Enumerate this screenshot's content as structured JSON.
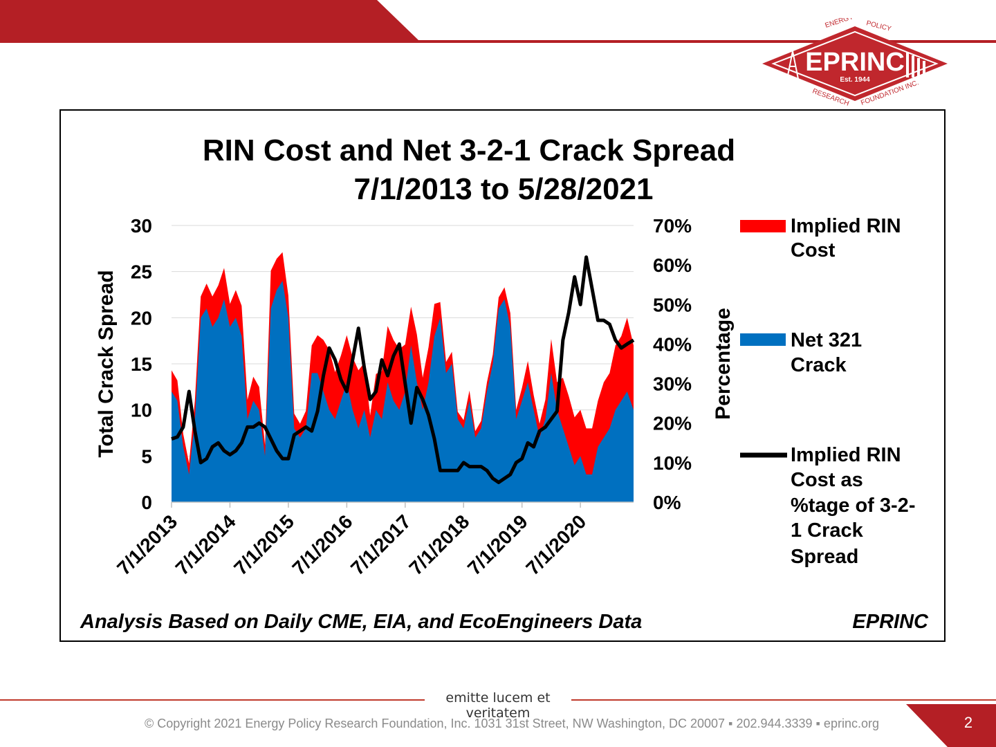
{
  "header": {
    "brand_color": "#b41f25",
    "logo": {
      "name": "EPRINC",
      "est": "Est. 1944",
      "ring_top_left": "ENERGY",
      "ring_top_right": "POLICY",
      "ring_bottom_left": "RESEARCH",
      "ring_bottom_right": "FOUNDATION INC."
    }
  },
  "chart_data": {
    "type": "area",
    "title_line1": "RIN Cost and Net 3-2-1 Crack Spread",
    "title_line2": "7/1/2013  to 5/28/2021",
    "ylabel": "Total Crack Spread",
    "y2label": "Percentage",
    "ylim": [
      0,
      30
    ],
    "y_ticks": [
      "0",
      "5",
      "10",
      "15",
      "20",
      "25",
      "30"
    ],
    "y2lim": [
      0,
      70
    ],
    "y2_ticks": [
      "0%",
      "10%",
      "20%",
      "30%",
      "40%",
      "50%",
      "60%",
      "70%"
    ],
    "x_ticks": [
      "7/1/2013",
      "7/1/2014",
      "7/1/2015",
      "7/1/2016",
      "7/1/2017",
      "7/1/2018",
      "7/1/2019",
      "7/1/2020"
    ],
    "xlim": [
      2013.5,
      2021.41
    ],
    "grid": "horizontal",
    "legend_position": "right",
    "colors": {
      "rin": "#ff0000",
      "crack": "#0070c0",
      "pct": "#000000"
    },
    "legend": {
      "rin": [
        "Implied RIN",
        "Cost"
      ],
      "crack": [
        "Net 321",
        "Crack"
      ],
      "pct": [
        "Implied RIN",
        "Cost as",
        "%tage of 3-2-",
        "1 Crack",
        "Spread"
      ]
    },
    "x": [
      2013.5,
      2013.6,
      2013.7,
      2013.8,
      2013.9,
      2014.0,
      2014.1,
      2014.2,
      2014.3,
      2014.4,
      2014.5,
      2014.6,
      2014.7,
      2014.8,
      2014.9,
      2015.0,
      2015.1,
      2015.2,
      2015.3,
      2015.4,
      2015.5,
      2015.6,
      2015.7,
      2015.8,
      2015.9,
      2016.0,
      2016.1,
      2016.2,
      2016.3,
      2016.4,
      2016.5,
      2016.6,
      2016.7,
      2016.8,
      2016.9,
      2017.0,
      2017.1,
      2017.2,
      2017.3,
      2017.4,
      2017.5,
      2017.6,
      2017.7,
      2017.8,
      2017.9,
      2018.0,
      2018.1,
      2018.2,
      2018.3,
      2018.4,
      2018.5,
      2018.6,
      2018.7,
      2018.8,
      2018.9,
      2019.0,
      2019.1,
      2019.2,
      2019.3,
      2019.4,
      2019.5,
      2019.6,
      2019.7,
      2019.8,
      2019.9,
      2020.0,
      2020.1,
      2020.2,
      2020.3,
      2020.4,
      2020.5,
      2020.6,
      2020.7,
      2020.8,
      2020.9,
      2021.0,
      2021.1,
      2021.2,
      2021.3,
      2021.41
    ],
    "series": [
      {
        "name": "Net 321 Crack",
        "values": [
          12,
          11,
          6,
          3,
          9,
          20,
          21,
          19,
          20,
          22,
          19,
          20,
          18,
          9,
          11,
          10,
          5,
          21,
          23,
          24,
          20,
          8,
          7,
          8,
          14,
          14,
          12,
          10,
          9,
          11,
          13,
          10,
          8,
          10,
          7,
          10,
          9,
          13,
          11,
          10,
          12,
          17,
          13,
          10,
          13,
          18,
          20,
          14,
          15,
          9,
          8,
          11,
          7,
          8,
          12,
          15,
          21,
          22,
          19,
          9,
          11,
          13,
          10,
          7,
          9,
          14,
          10,
          8,
          6,
          4,
          5,
          3,
          3,
          6,
          7,
          8,
          10,
          11,
          12,
          10
        ]
      },
      {
        "name": "Implied RIN Cost",
        "values": [
          2.3,
          2.2,
          1.4,
          1.2,
          2,
          2.3,
          2.7,
          3.3,
          3.5,
          3.4,
          2.5,
          3,
          3.3,
          2.1,
          2.6,
          2.5,
          1.2,
          4.1,
          3.4,
          3.1,
          2.4,
          1.6,
          1.5,
          1.9,
          3,
          4.1,
          5.6,
          6.5,
          5.1,
          4.9,
          5.1,
          5.7,
          6.3,
          5.1,
          2.4,
          3.9,
          5.2,
          6.1,
          6.6,
          6.6,
          5.1,
          4.2,
          5.2,
          3.5,
          3.8,
          3.5,
          1.7,
          1.2,
          1.3,
          0.8,
          0.9,
          1.1,
          0.7,
          0.8,
          1,
          1,
          1.2,
          1.3,
          1.5,
          1,
          1.4,
          2.3,
          1.6,
          1.5,
          2.1,
          3.7,
          3,
          5.5,
          5.5,
          5.2,
          5,
          5,
          5,
          5,
          6,
          6,
          7,
          7,
          8,
          7
        ]
      },
      {
        "name": "Implied RIN Cost as %tage of 3-2-1 Crack Spread",
        "values": [
          16,
          16.5,
          19,
          28,
          18,
          10,
          11,
          14,
          15,
          13,
          12,
          13,
          15,
          19,
          19,
          20,
          19,
          16,
          13,
          11,
          11,
          17,
          18,
          19,
          18,
          23,
          32,
          39,
          36,
          31,
          28,
          36,
          44,
          34,
          26,
          28,
          36,
          32,
          37,
          40,
          30,
          20,
          29,
          26,
          22,
          16,
          8,
          8,
          8,
          8,
          10,
          9,
          9,
          9,
          8,
          6,
          5,
          6,
          7,
          10,
          11,
          15,
          14,
          18,
          19,
          21,
          23,
          41,
          48,
          57,
          50,
          62,
          54,
          46,
          46,
          45,
          41,
          39,
          40,
          41
        ]
      }
    ]
  },
  "source_note": "Analysis Based on Daily CME, EIA, and EcoEngineers Data",
  "source_brand": "EPRINC",
  "footer": {
    "motto": "emitte lucem et veritatem",
    "copyright": "© Copyright 2021 Energy Policy Research Foundation, Inc. 1031 31st Street, NW Washington, DC 20007 ▪ 202.944.3339 ▪ eprinc.org",
    "page_number": "2"
  }
}
